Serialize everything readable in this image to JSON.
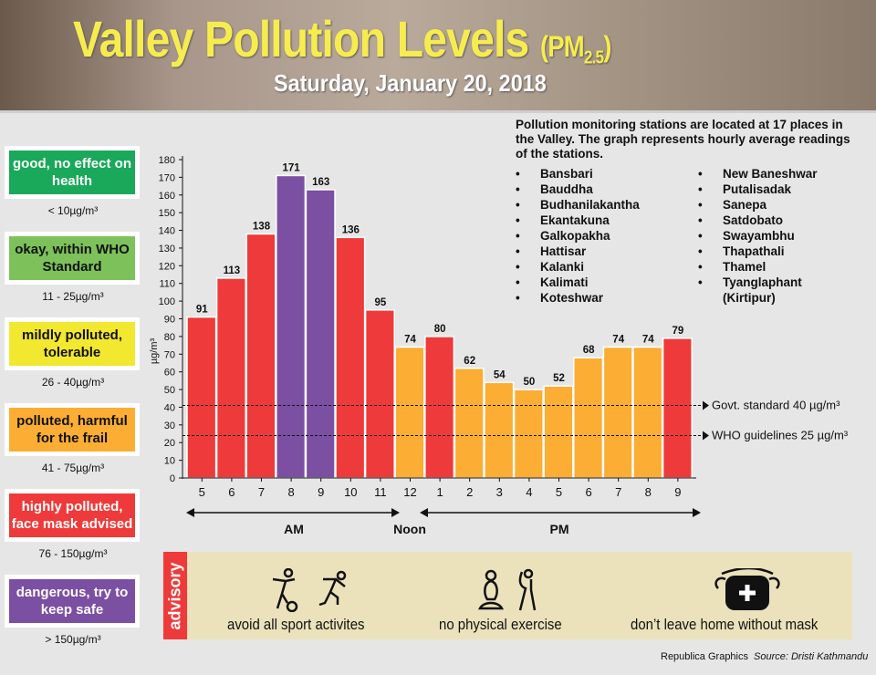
{
  "header": {
    "title": "Valley Pollution Levels",
    "pm": "(PM",
    "pm_sub": "2.5",
    "pm_close": ")",
    "date": "Saturday, January 20, 2018"
  },
  "legend": [
    {
      "label": "good, no effect on health",
      "range": "< 10µg/m³",
      "color": "#1aa85a",
      "text": "#ffffff"
    },
    {
      "label": "okay, within WHO Standard",
      "range": "11 - 25µg/m³",
      "color": "#7dc15a",
      "text": "#111111"
    },
    {
      "label": "mildly polluted, tolerable",
      "range": "26 - 40µg/m³",
      "color": "#f3e830",
      "text": "#111111"
    },
    {
      "label": "polluted, harmful for the frail",
      "range": "41 - 75µg/m³",
      "color": "#fbad34",
      "text": "#111111"
    },
    {
      "label": "highly polluted, face mask advised",
      "range": "76 - 150µg/m³",
      "color": "#ee3a3a",
      "text": "#ffffff"
    },
    {
      "label": "dangerous, try to keep safe",
      "range": "> 150µg/m³",
      "color": "#7b4fa2",
      "text": "#ffffff"
    }
  ],
  "stations": {
    "intro": "Pollution monitoring stations are located at 17 places in the Valley. The graph represents hourly average readings of the stations.",
    "col1": [
      "Bansbari",
      "Bauddha",
      "Budhanilakantha",
      "Ekantakuna",
      "Galkopakha",
      "Hattisar",
      "Kalanki",
      "Kalimati",
      "Koteshwar"
    ],
    "col2": [
      "New Baneshwar",
      "Putalisadak",
      "Sanepa",
      "Satdobato",
      "Swayambhu",
      "Thapathali",
      "Thamel",
      "Tyanglaphant",
      "(Kirtipur)"
    ]
  },
  "chart_data": {
    "type": "bar",
    "ylabel": "µg/m³",
    "ylim": [
      0,
      180
    ],
    "yticks": [
      0,
      10,
      20,
      30,
      40,
      50,
      60,
      70,
      80,
      90,
      100,
      110,
      120,
      130,
      140,
      150,
      160,
      170,
      180
    ],
    "categories": [
      "5",
      "6",
      "7",
      "8",
      "9",
      "10",
      "11",
      "12",
      "1",
      "2",
      "3",
      "4",
      "5",
      "6",
      "7",
      "8",
      "9"
    ],
    "values": [
      91,
      113,
      138,
      171,
      163,
      136,
      95,
      74,
      80,
      62,
      54,
      50,
      52,
      68,
      74,
      74,
      79
    ],
    "colors": {
      "orange": "#fbad34",
      "red": "#ee3a3a",
      "purple": "#7b4fa2"
    },
    "periods": {
      "am": "AM",
      "noon": "Noon",
      "pm": "PM"
    },
    "reference_lines": [
      {
        "value": 40,
        "label": "Govt. standard 40 µg/m³"
      },
      {
        "value": 25,
        "label": "WHO guidelines 25 µg/m³"
      }
    ]
  },
  "advisory": {
    "tag": "advisory",
    "items": [
      "avoid all sport activites",
      "no physical exercise",
      "don’t leave home without mask"
    ]
  },
  "credit": {
    "by": "Republica Graphics",
    "source": "Source: Dristi Kathmandu"
  }
}
